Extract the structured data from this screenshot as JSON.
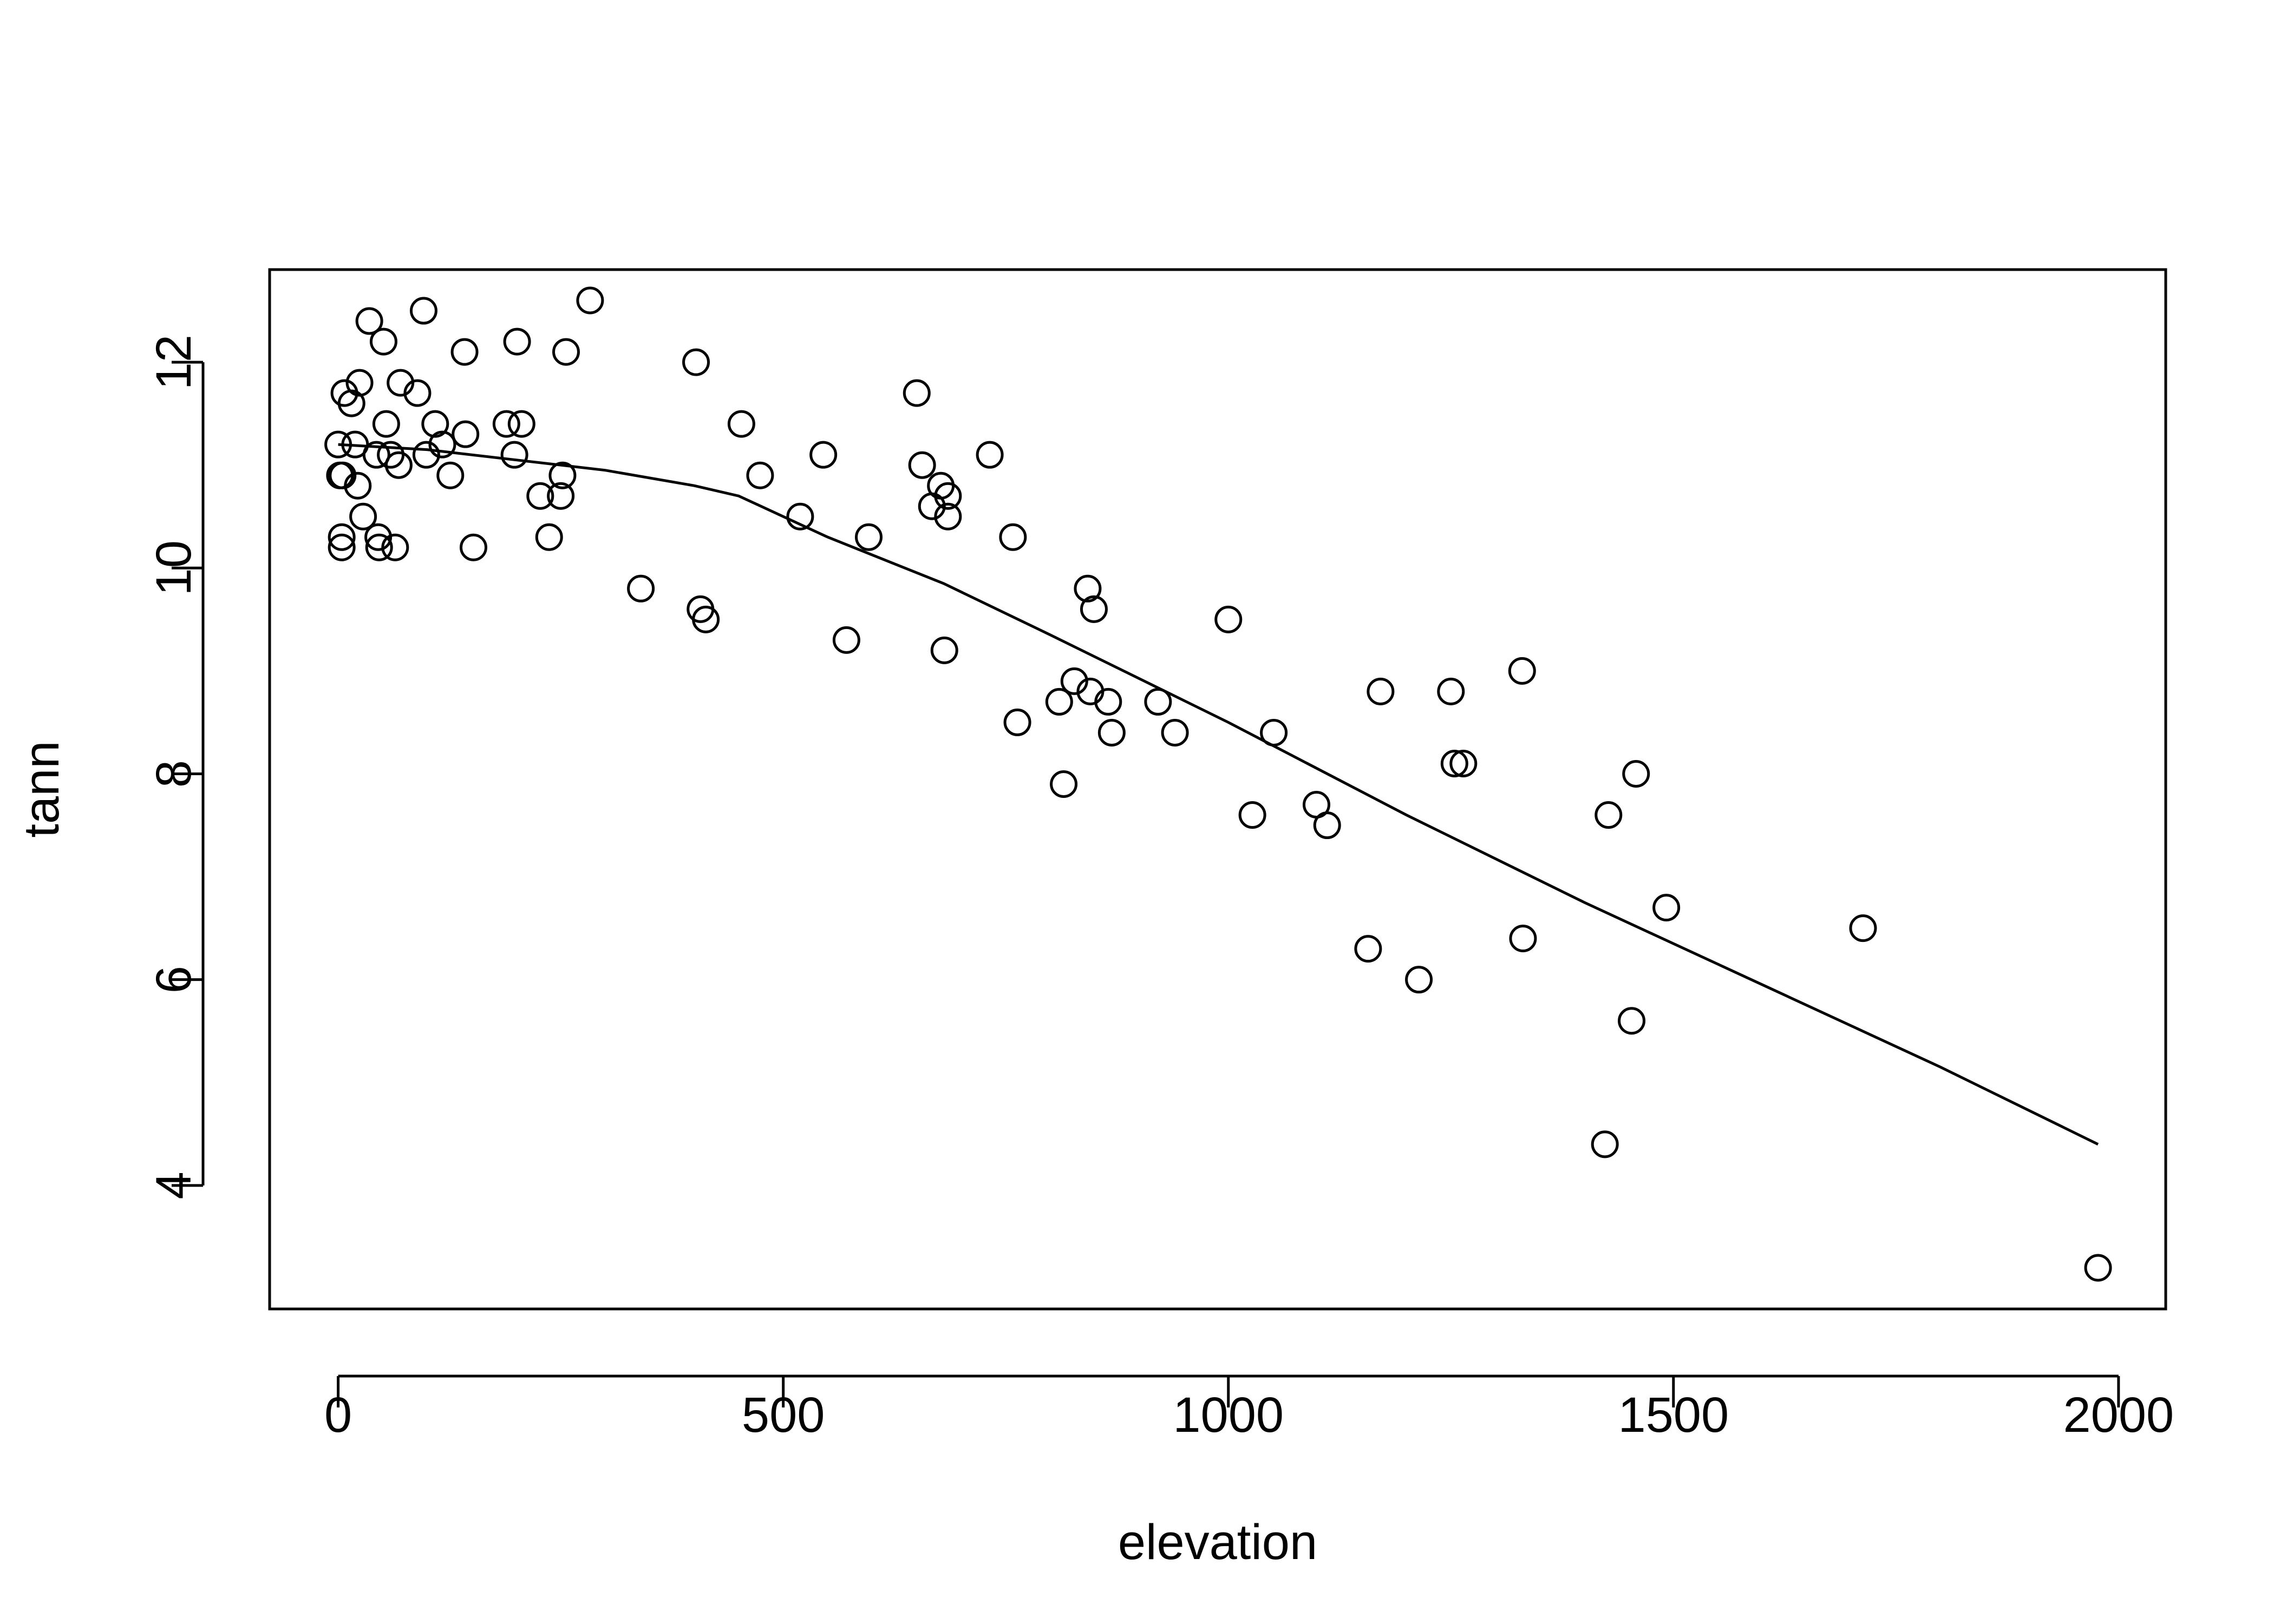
{
  "chart_data": {
    "type": "scatter",
    "title": "",
    "xlabel": "elevation",
    "ylabel": "tann",
    "xlim": [
      -77,
      2053
    ],
    "ylim": [
      2.8,
      12.9
    ],
    "grid": false,
    "legend": "none",
    "x_ticks": [
      0,
      500,
      1000,
      1500,
      2000
    ],
    "y_ticks": [
      4,
      6,
      8,
      10,
      12
    ],
    "colors": {
      "points": "#000000",
      "line": "#000000",
      "frame": "#000000"
    },
    "points": [
      [
        0,
        11.2
      ],
      [
        2,
        10.9
      ],
      [
        4,
        10.3
      ],
      [
        4,
        10.2
      ],
      [
        5,
        10.9
      ],
      [
        7,
        11.7
      ],
      [
        15,
        11.6
      ],
      [
        19,
        11.2
      ],
      [
        22,
        10.8
      ],
      [
        24,
        11.8
      ],
      [
        28,
        10.5
      ],
      [
        35,
        12.4
      ],
      [
        43,
        11.1
      ],
      [
        45,
        10.3
      ],
      [
        46,
        10.2
      ],
      [
        51,
        12.2
      ],
      [
        54,
        11.4
      ],
      [
        59,
        11.1
      ],
      [
        64,
        10.2
      ],
      [
        68,
        11.0
      ],
      [
        70,
        11.8
      ],
      [
        89,
        11.7
      ],
      [
        96,
        12.5
      ],
      [
        99,
        11.1
      ],
      [
        109,
        11.4
      ],
      [
        117,
        11.2
      ],
      [
        126,
        10.9
      ],
      [
        142,
        12.1
      ],
      [
        143,
        11.3
      ],
      [
        152,
        10.2
      ],
      [
        189,
        11.4
      ],
      [
        198,
        11.1
      ],
      [
        201,
        12.2
      ],
      [
        206,
        11.4
      ],
      [
        227,
        10.7
      ],
      [
        237,
        10.3
      ],
      [
        250,
        10.7
      ],
      [
        252,
        10.9
      ],
      [
        256,
        12.1
      ],
      [
        283,
        12.6
      ],
      [
        340,
        9.8
      ],
      [
        402,
        12.0
      ],
      [
        407,
        9.6
      ],
      [
        413,
        9.5
      ],
      [
        453,
        11.4
      ],
      [
        474,
        10.9
      ],
      [
        519,
        10.5
      ],
      [
        545,
        11.1
      ],
      [
        571,
        9.3
      ],
      [
        596,
        10.3
      ],
      [
        650,
        11.7
      ],
      [
        656,
        11.0
      ],
      [
        667,
        10.6
      ],
      [
        677,
        10.8
      ],
      [
        681,
        9.2
      ],
      [
        685,
        10.7
      ],
      [
        685,
        10.5
      ],
      [
        732,
        11.1
      ],
      [
        758,
        10.3
      ],
      [
        763,
        8.5
      ],
      [
        810,
        8.7
      ],
      [
        815,
        7.9
      ],
      [
        827,
        8.9
      ],
      [
        842,
        9.8
      ],
      [
        845,
        8.8
      ],
      [
        849,
        9.6
      ],
      [
        865,
        8.7
      ],
      [
        869,
        8.4
      ],
      [
        921,
        8.7
      ],
      [
        940,
        8.4
      ],
      [
        1000,
        9.5
      ],
      [
        1027,
        7.6
      ],
      [
        1051,
        8.4
      ],
      [
        1099,
        7.7
      ],
      [
        1111,
        7.5
      ],
      [
        1157,
        6.3
      ],
      [
        1171,
        8.8
      ],
      [
        1214,
        6.0
      ],
      [
        1250,
        8.8
      ],
      [
        1254,
        8.1
      ],
      [
        1264,
        8.1
      ],
      [
        1330,
        9.0
      ],
      [
        1331,
        6.4
      ],
      [
        1423,
        4.4
      ],
      [
        1427,
        7.6
      ],
      [
        1453,
        5.6
      ],
      [
        1458,
        8.0
      ],
      [
        1492,
        6.7
      ],
      [
        1713,
        6.5
      ],
      [
        1977,
        3.2
      ]
    ],
    "fit_line": [
      [
        0,
        11.2
      ],
      [
        100,
        11.15
      ],
      [
        200,
        11.05
      ],
      [
        300,
        10.95
      ],
      [
        400,
        10.8
      ],
      [
        450,
        10.7
      ],
      [
        550,
        10.3
      ],
      [
        680,
        9.85
      ],
      [
        800,
        9.35
      ],
      [
        1000,
        8.5
      ],
      [
        1200,
        7.6
      ],
      [
        1400,
        6.75
      ],
      [
        1600,
        5.95
      ],
      [
        1800,
        5.15
      ],
      [
        1977,
        4.4
      ]
    ]
  }
}
